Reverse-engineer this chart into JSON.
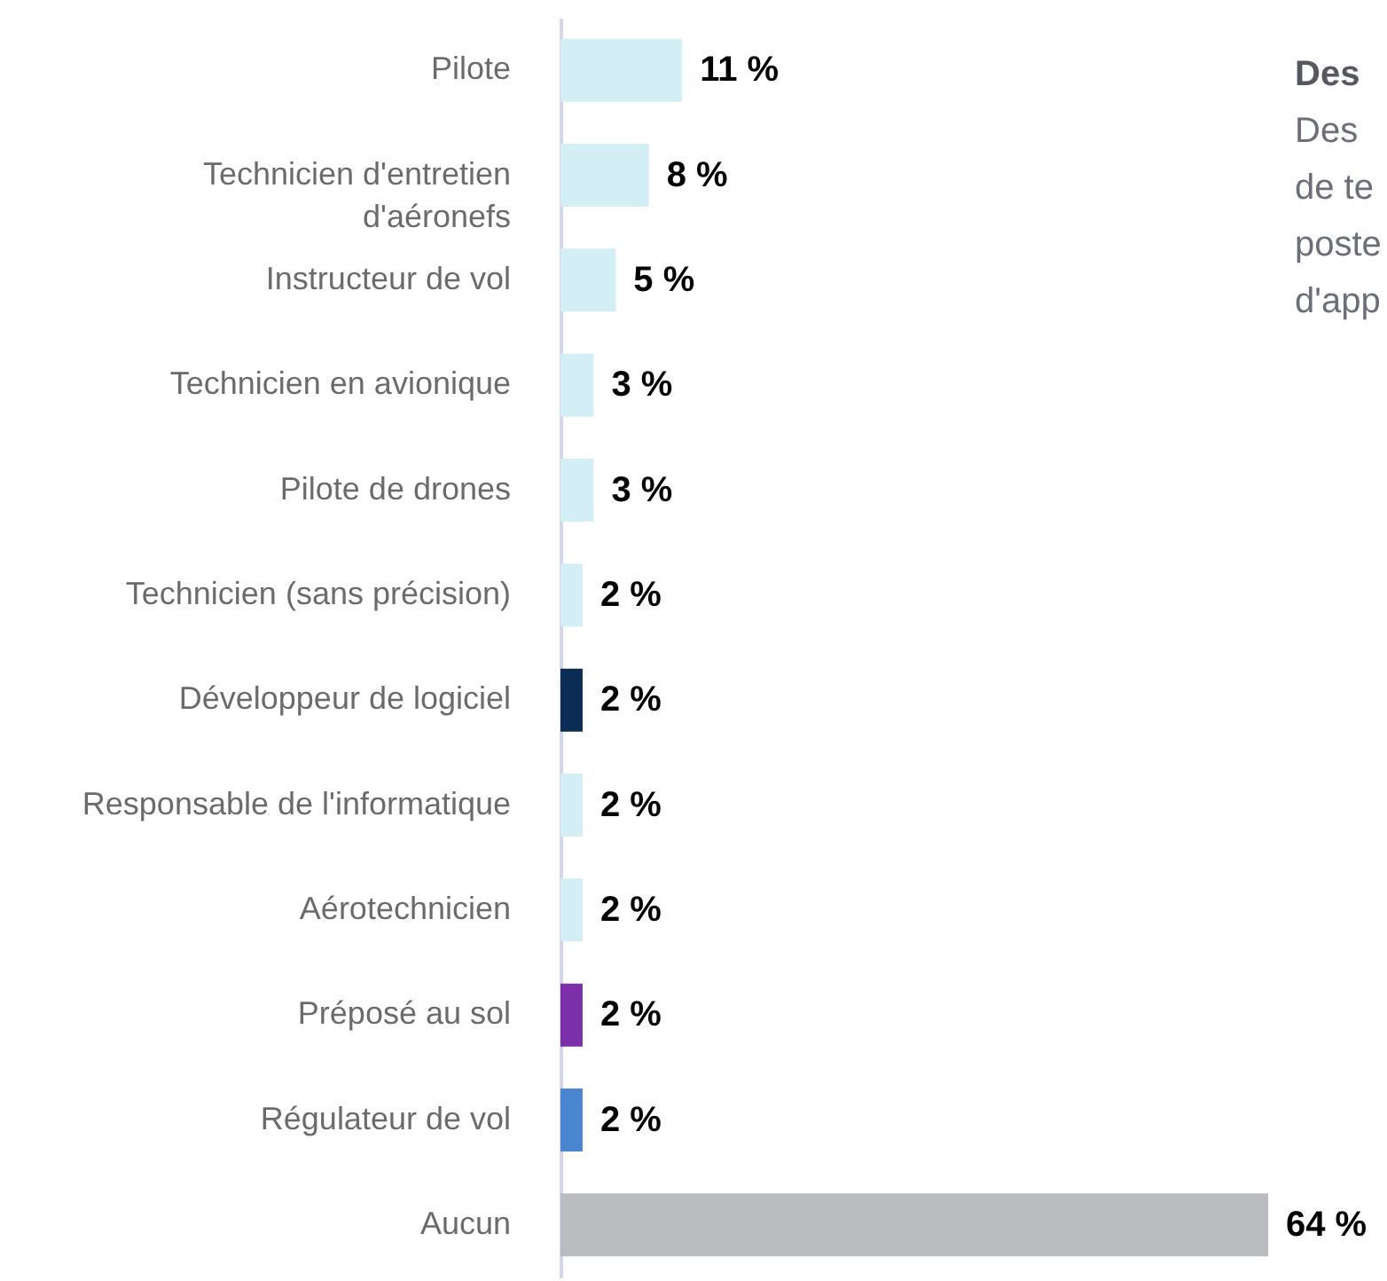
{
  "chart_data": {
    "type": "bar",
    "orientation": "horizontal",
    "title": "Des",
    "annotations": [
      "Des",
      "de te",
      "poste",
      "d'app"
    ],
    "categories": [
      "Pilote",
      "Technicien d'entretien d'aéronefs",
      "Instructeur de vol",
      "Technicien en avionique",
      "Pilote de drones",
      "Technicien (sans précision)",
      "Développeur de logiciel",
      "Responsable de l'informatique",
      "Aérotechnicien",
      "Préposé au sol",
      "Régulateur de vol",
      "Aucun"
    ],
    "values": [
      11,
      8,
      5,
      3,
      3,
      2,
      2,
      2,
      2,
      2,
      2,
      64
    ],
    "value_labels": [
      "11 %",
      "8 %",
      "5 %",
      "3 %",
      "3 %",
      "2 %",
      "2 %",
      "2 %",
      "2 %",
      "2 %",
      "2 %",
      "64 %"
    ],
    "colors": [
      "#d3eef4",
      "#d3eef4",
      "#d3eef4",
      "#d3eef4",
      "#d3eef4",
      "#d3eef4",
      "#0b2d55",
      "#d3eef4",
      "#d3eef4",
      "#7b2fa8",
      "#4a86d0",
      "#bbbcbf"
    ],
    "grid": false
  }
}
